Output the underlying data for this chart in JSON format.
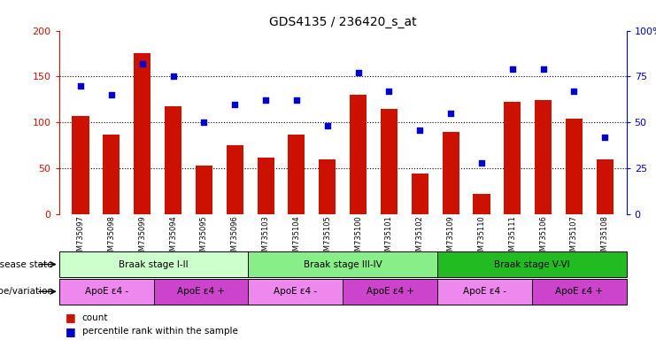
{
  "title": "GDS4135 / 236420_s_at",
  "samples": [
    "GSM735097",
    "GSM735098",
    "GSM735099",
    "GSM735094",
    "GSM735095",
    "GSM735096",
    "GSM735103",
    "GSM735104",
    "GSM735105",
    "GSM735100",
    "GSM735101",
    "GSM735102",
    "GSM735109",
    "GSM735110",
    "GSM735111",
    "GSM735106",
    "GSM735107",
    "GSM735108"
  ],
  "bar_values": [
    107,
    87,
    175,
    118,
    53,
    75,
    62,
    87,
    60,
    130,
    115,
    44,
    90,
    22,
    122,
    124,
    104,
    60
  ],
  "dot_values": [
    70,
    65,
    82,
    75,
    50,
    60,
    62,
    62,
    48,
    77,
    67,
    46,
    55,
    28,
    79,
    79,
    67,
    42
  ],
  "bar_color": "#cc1100",
  "dot_color": "#0000cc",
  "ylim_left": [
    0,
    200
  ],
  "ylim_right": [
    0,
    100
  ],
  "yticks_left": [
    0,
    50,
    100,
    150,
    200
  ],
  "ytick_labels_left": [
    "0",
    "50",
    "100",
    "150",
    "200"
  ],
  "yticks_right": [
    0,
    25,
    50,
    75,
    100
  ],
  "ytick_labels_right": [
    "0",
    "25",
    "50",
    "75",
    "100%"
  ],
  "grid_lines": [
    50,
    100,
    150
  ],
  "disease_state_label": "disease state",
  "genotype_label": "genotype/variation",
  "disease_groups": [
    {
      "label": "Braak stage I-II",
      "start": 0,
      "end": 6,
      "color": "#ccffcc"
    },
    {
      "label": "Braak stage III-IV",
      "start": 6,
      "end": 12,
      "color": "#88ee88"
    },
    {
      "label": "Braak stage V-VI",
      "start": 12,
      "end": 18,
      "color": "#22bb22"
    }
  ],
  "genotype_groups": [
    {
      "label": "ApoE ε4 -",
      "start": 0,
      "end": 3,
      "color": "#ee88ee"
    },
    {
      "label": "ApoE ε4 +",
      "start": 3,
      "end": 6,
      "color": "#cc44cc"
    },
    {
      "label": "ApoE ε4 -",
      "start": 6,
      "end": 9,
      "color": "#ee88ee"
    },
    {
      "label": "ApoE ε4 +",
      "start": 9,
      "end": 12,
      "color": "#cc44cc"
    },
    {
      "label": "ApoE ε4 -",
      "start": 12,
      "end": 15,
      "color": "#ee88ee"
    },
    {
      "label": "ApoE ε4 +",
      "start": 15,
      "end": 18,
      "color": "#cc44cc"
    }
  ],
  "legend_count_color": "#cc1100",
  "legend_dot_color": "#0000cc"
}
